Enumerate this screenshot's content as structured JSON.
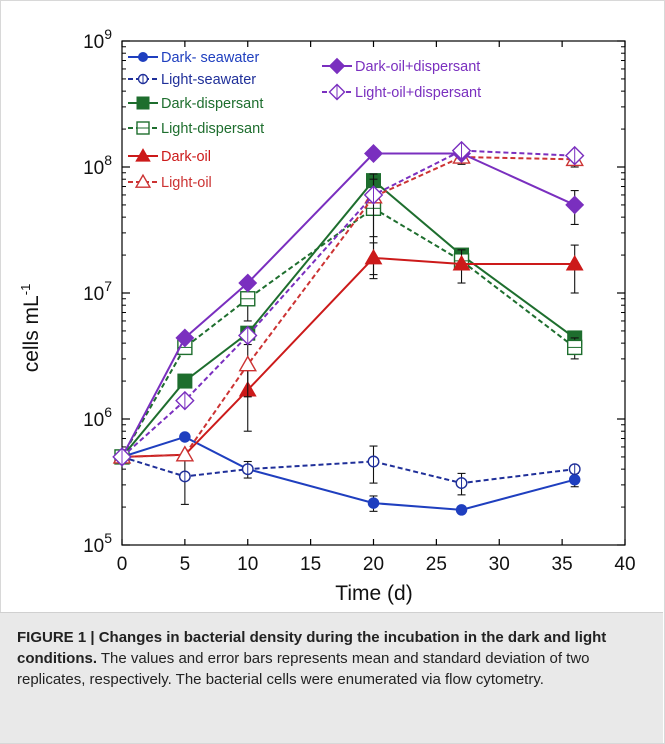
{
  "chart_data": {
    "type": "line",
    "xlabel": "Time (d)",
    "ylabel_base": "cells mL",
    "ylabel_exponent": "-1",
    "y_scale": "log",
    "xlim": [
      0,
      40
    ],
    "ylim": [
      100000,
      1000000000
    ],
    "x_ticks": [
      "0",
      "5",
      "10",
      "15",
      "20",
      "25",
      "30",
      "35",
      "40"
    ],
    "y_ticks": [
      {
        "base": "10",
        "exp": "5",
        "value": 100000
      },
      {
        "base": "10",
        "exp": "6",
        "value": 1000000
      },
      {
        "base": "10",
        "exp": "7",
        "value": 10000000
      },
      {
        "base": "10",
        "exp": "8",
        "value": 100000000
      },
      {
        "base": "10",
        "exp": "9",
        "value": 1000000000
      }
    ],
    "grid": false,
    "legend_placement": "top-left",
    "x": [
      0,
      5,
      10,
      20,
      27,
      36
    ],
    "series": [
      {
        "name": "Dark- seawater",
        "color": "#1f3fbf",
        "marker": "circle-filled",
        "dashed": false,
        "values": [
          500000,
          720000,
          400000,
          215000,
          190000,
          330000
        ],
        "errors": [
          0,
          0,
          30000,
          30000,
          8000,
          40000
        ]
      },
      {
        "name": "Light-seawater",
        "color": "#1f2f99",
        "marker": "circle-open-cross",
        "dashed": true,
        "values": [
          500000,
          350000,
          400000,
          460000,
          310000,
          400000
        ],
        "errors": [
          0,
          140000,
          60000,
          150000,
          60000,
          30000
        ]
      },
      {
        "name": "Dark-dispersant",
        "color": "#1e6e2e",
        "marker": "square-filled",
        "dashed": false,
        "values": [
          500000,
          2000000,
          4800000,
          78000000,
          20000000,
          4400000
        ],
        "errors": [
          0,
          0,
          0,
          0,
          0,
          0
        ]
      },
      {
        "name": "Light-dispersant",
        "color": "#1e6e2e",
        "marker": "square-open",
        "dashed": true,
        "values": [
          500000,
          3700000,
          9000000,
          47000000,
          18000000,
          3700000
        ],
        "errors": [
          0,
          0,
          3000000,
          33000000,
          0,
          700000
        ]
      },
      {
        "name": "Dark-oil",
        "color": "#cc1a1a",
        "marker": "triangle-filled",
        "dashed": false,
        "values": [
          500000,
          520000,
          1700000,
          19000000,
          17000000,
          17000000
        ],
        "errors": [
          0,
          0,
          900000,
          6000000,
          5000000,
          7000000
        ]
      },
      {
        "name": "Light-oil",
        "color": "#cc3333",
        "marker": "triangle-open",
        "dashed": true,
        "values": [
          500000,
          520000,
          2700000,
          58000000,
          120000000,
          115000000
        ],
        "errors": [
          0,
          0,
          1200000,
          30000000,
          15000000,
          15000000
        ]
      },
      {
        "name": "Dark-oil+dispersant",
        "color": "#7a2fbf",
        "marker": "diamond-filled",
        "dashed": false,
        "values": [
          500000,
          4400000,
          12000000,
          128000000,
          128000000,
          50000000
        ],
        "errors": [
          0,
          0,
          0,
          0,
          0,
          15000000
        ]
      },
      {
        "name": "Light-oil+dispersant",
        "color": "#7a2fbf",
        "marker": "diamond-open",
        "dashed": true,
        "values": [
          500000,
          1400000,
          4600000,
          60000000,
          135000000,
          123000000
        ],
        "errors": [
          0,
          0,
          0,
          0,
          10000000,
          10000000
        ]
      }
    ]
  },
  "caption": {
    "lead": "FIGURE 1 | Changes in bacterial density during the incubation in the dark and light conditions.",
    "body": " The values and error bars represents mean and standard deviation of two replicates, respectively. The bacterial cells were enumerated via flow cytometry."
  }
}
